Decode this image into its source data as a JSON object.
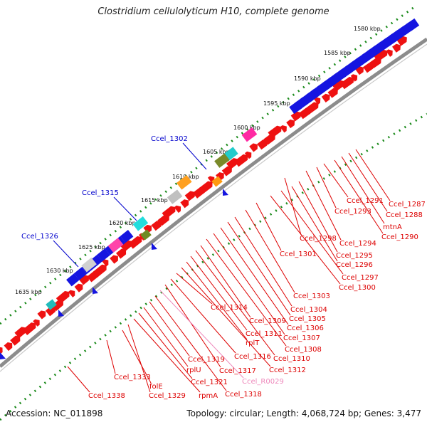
{
  "title": "Clostridium cellulolyticum H10, complete genome",
  "footer": {
    "accession": "Accession: NC_011898",
    "summary": "Topology: circular; Length: 4,068,724 bp; Genes: 3,477"
  },
  "colors": {
    "backbone": "#8c8c8c",
    "scale_dots": "#1a8a1a",
    "forward_gene": "#ee1111",
    "reverse_gene": "#1515e0",
    "label_red": "#dd0000",
    "label_blue": "#0000cc",
    "label_pink": "#ee88bb"
  },
  "scale_ticks": [
    "1580 kbp",
    "1585 kbp",
    "1590 kbp",
    "1595 kbp",
    "1600 kbp",
    "1605 kbp",
    "1610 kbp",
    "1615 kbp",
    "1620 kbp",
    "1625 kbp",
    "1630 kbp",
    "1635 kbp"
  ],
  "labels_outer_blue": [
    "Ccel_1302",
    "Ccel_1315",
    "Ccel_1326"
  ],
  "labels_inner": [
    "Ccel_1287",
    "Ccel_1288",
    "mtnA",
    "Ccel_1290",
    "Ccel_1291",
    "Ccel_1293",
    "Ccel_1294",
    "Ccel_1298",
    "Ccel_1295",
    "Ccel_1296",
    "Ccel_1297",
    "Ccel_1300",
    "Ccel_1301",
    "Ccel_1303",
    "Ccel_1304",
    "Ccel_1305",
    "Ccel_1306",
    "Ccel_1307",
    "Ccel_1308",
    "Ccel_1309",
    "Ccel_1310",
    "Ccel_1311",
    "rplT",
    "Ccel_1312",
    "Ccel_1314",
    "Ccel_1316",
    "Ccel_1317",
    "Ccel_R0029",
    "Ccel_1318",
    "Ccel_1319",
    "rplU",
    "Ccel_1321",
    "rpmA",
    "Ccel_1329",
    "folE",
    "Ccel_1333",
    "Ccel_1338"
  ]
}
